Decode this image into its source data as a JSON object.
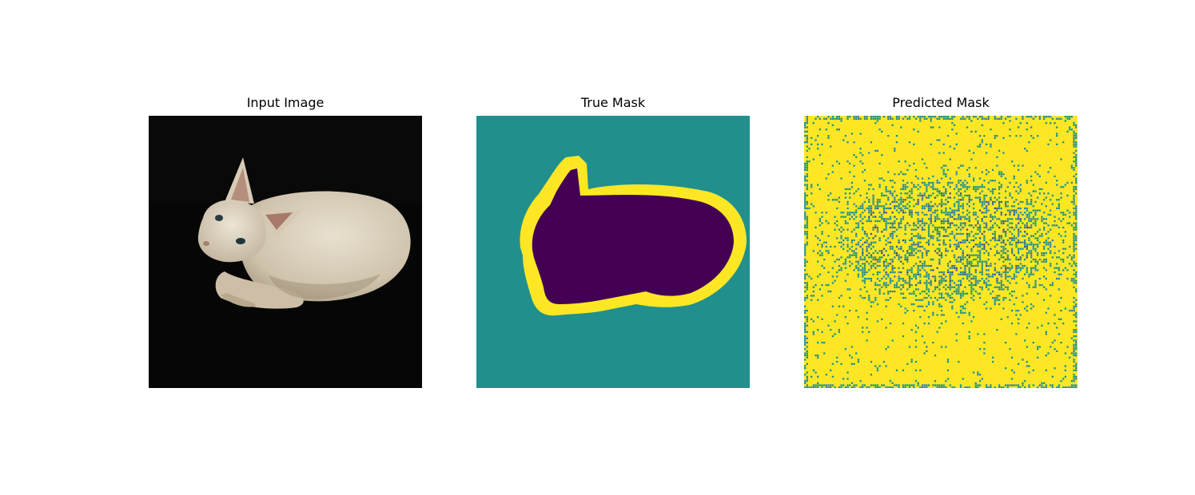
{
  "panels": [
    {
      "title": "Input Image"
    },
    {
      "title": "True Mask"
    },
    {
      "title": "Predicted Mask"
    }
  ],
  "colors": {
    "background_dark": "#050505",
    "cat_skin": "#d9cfbd",
    "mask_background": "#21908d",
    "mask_border": "#fde725",
    "mask_foreground": "#440154"
  }
}
